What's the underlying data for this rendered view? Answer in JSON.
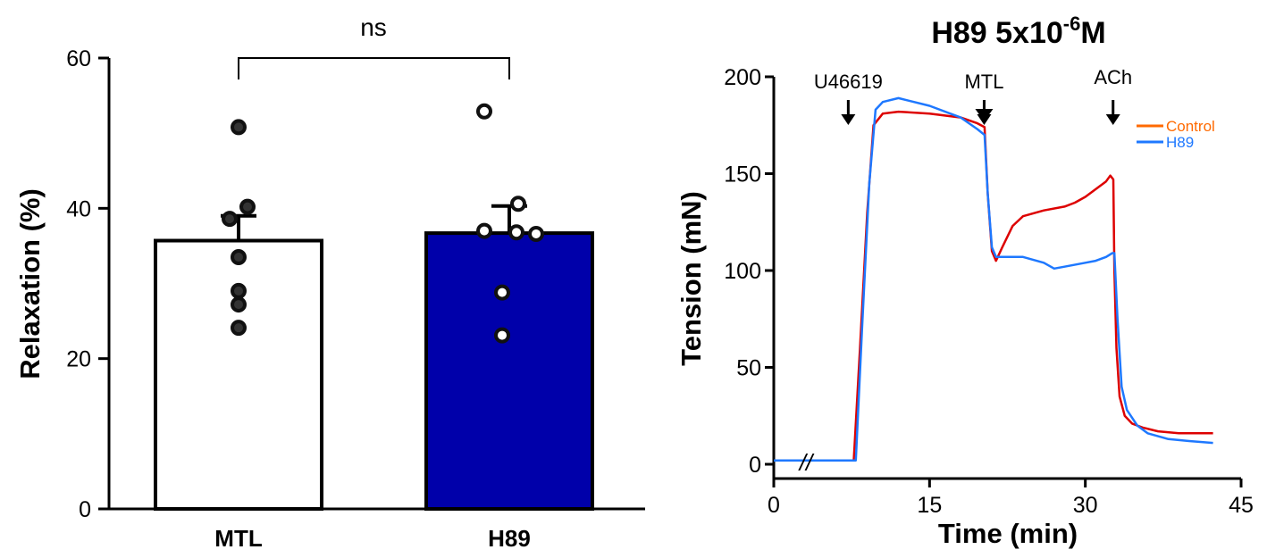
{
  "chart_data": [
    {
      "type": "bar",
      "categories": [
        "MTL",
        "H89"
      ],
      "values": [
        35.7,
        36.7
      ],
      "errors": [
        3.3,
        3.6
      ],
      "points": [
        [
          50.8,
          40.2,
          38.6,
          33.5,
          29.0,
          27.2,
          24.1
        ],
        [
          52.9,
          40.6,
          37.0,
          36.8,
          36.6,
          28.8,
          23.1
        ]
      ],
      "bar_colors": [
        "#ffffff",
        "#0000aa"
      ],
      "ylabel": "Relaxation (%)",
      "ylim": [
        0,
        60
      ],
      "yticks": [
        0,
        20,
        40,
        60
      ],
      "significance": "ns"
    },
    {
      "type": "line",
      "title": "H89 5x10",
      "title_exponent": "-6",
      "title_suffix": "M",
      "xlabel": "Time (min)",
      "ylabel": "Tension (mN)",
      "xlim": [
        0,
        45
      ],
      "ylim": [
        0,
        200
      ],
      "xticks": [
        0,
        15,
        30,
        45
      ],
      "yticks": [
        0,
        50,
        100,
        150,
        200
      ],
      "axis_break_symbol": "//",
      "annotations": [
        {
          "label": "U46619",
          "x": 7.0
        },
        {
          "label": "MTL",
          "x": 20.0
        },
        {
          "label": "ACh",
          "x": 32.5
        }
      ],
      "series": [
        {
          "name": "Control",
          "color": "#dd0000",
          "legend_color": "#ff6a00",
          "x": [
            0,
            7.7,
            8.3,
            9.0,
            9.6,
            10.5,
            12,
            15,
            18,
            19.6,
            20.3,
            20.6,
            21.0,
            21.4,
            22.0,
            23.0,
            24,
            26,
            28,
            29,
            30,
            31,
            32,
            32.4,
            32.7,
            32.8,
            33.0,
            33.3,
            33.8,
            34.5,
            35.5,
            37,
            39,
            41,
            42.3
          ],
          "y": [
            2,
            2,
            60,
            130,
            175,
            181,
            182,
            181,
            179,
            176,
            174,
            140,
            110,
            105,
            112,
            123,
            128,
            131,
            133,
            135,
            138,
            142,
            146,
            149,
            147,
            100,
            60,
            35,
            25,
            21,
            19,
            17,
            16,
            16,
            16
          ]
        },
        {
          "name": "H89",
          "color": "#1e78ff",
          "legend_color": "#1e78ff",
          "x": [
            0,
            7.9,
            8.5,
            9.2,
            9.8,
            10.5,
            12,
            15,
            18,
            19.6,
            20.3,
            20.6,
            21.0,
            21.4,
            22.0,
            24,
            26,
            27,
            28,
            30,
            31,
            32,
            32.6,
            32.8,
            33.1,
            33.5,
            34,
            35,
            36,
            38,
            40,
            42.3
          ],
          "y": [
            2,
            2,
            70,
            145,
            183,
            187,
            189,
            185,
            179,
            173,
            170,
            140,
            112,
            107,
            107,
            107,
            104,
            101,
            102,
            104,
            105,
            107,
            109,
            109,
            75,
            40,
            28,
            20,
            16,
            13,
            12,
            11
          ]
        }
      ]
    }
  ]
}
